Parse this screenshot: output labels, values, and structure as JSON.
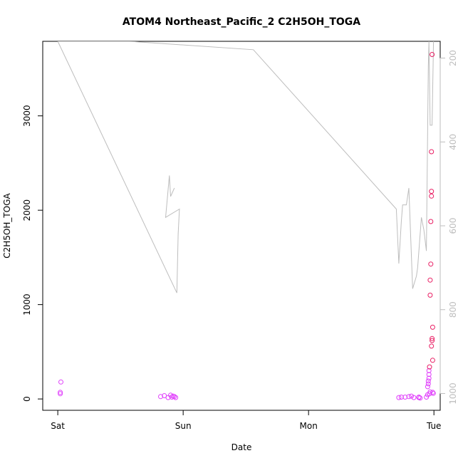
{
  "chart_data": {
    "type": "scatter",
    "title": "ATOM4 Northeast_Pacific_2 C2H5OH_TOGA",
    "xlabel": "Date",
    "ylabel": "C2H5OH_TOGA",
    "x_ticks": [
      {
        "label": "Sat",
        "value": 0
      },
      {
        "label": "Sun",
        "value": 1
      },
      {
        "label": "Mon",
        "value": 2
      },
      {
        "label": "Tue",
        "value": 3
      }
    ],
    "y_ticks": [
      0,
      1000,
      2000,
      3000
    ],
    "y2_ticks": [
      200,
      400,
      600,
      800,
      1000
    ],
    "xlim": [
      -0.12,
      3.05
    ],
    "ylim": [
      -120,
      3790
    ],
    "y2lim": [
      1040,
      160
    ],
    "y2_reversed": true,
    "grid": false,
    "colors": {
      "line": "#bdbdbd",
      "points_low": "#e040fb",
      "points_high": "#e91e63",
      "axis": "#000000",
      "right_axis": "#bdbdbd"
    },
    "series": [
      {
        "type": "line",
        "axis": "right",
        "x": [
          0.0,
          0.57,
          1.56,
          2.7,
          2.72,
          2.74,
          2.75,
          2.78,
          2.8,
          2.83,
          2.86,
          2.87,
          2.9,
          2.92,
          2.94,
          2.955,
          2.96,
          2.97,
          2.985,
          3.0
        ],
        "y": [
          160,
          160,
          180,
          560,
          690,
          590,
          550,
          550,
          510,
          750,
          720,
          700,
          580,
          610,
          660,
          220,
          160,
          360,
          360,
          100
        ]
      },
      {
        "type": "line",
        "axis": "right",
        "x": [
          0.0,
          0.95,
          0.96,
          0.97,
          0.86,
          0.89,
          0.9,
          0.93
        ],
        "y": [
          160,
          760,
          620,
          560,
          580,
          480,
          530,
          510
        ]
      },
      {
        "type": "scatter",
        "axis": "left",
        "x": [
          0.02,
          0.02,
          0.025,
          0.82,
          0.85,
          0.88,
          0.9,
          0.91,
          0.92,
          0.93,
          0.94,
          2.72,
          2.74,
          2.77,
          2.8,
          2.82,
          2.84,
          2.88,
          2.88,
          2.89,
          2.94,
          2.95,
          2.95,
          2.955,
          2.955,
          2.96,
          2.96,
          2.96,
          2.965,
          2.965,
          2.97,
          2.97,
          2.97,
          2.975,
          2.975,
          2.98,
          2.98,
          2.98,
          2.985,
          2.985,
          2.99
        ],
        "y": [
          55,
          70,
          180,
          25,
          35,
          15,
          40,
          20,
          30,
          25,
          15,
          15,
          20,
          20,
          25,
          30,
          15,
          20,
          15,
          10,
          20,
          45,
          130,
          160,
          190,
          220,
          260,
          300,
          340,
          55,
          75,
          1100,
          1260,
          1430,
          1880,
          2150,
          2200,
          2620,
          3650,
          620,
          760
        ]
      },
      {
        "type": "scatter",
        "axis": "left",
        "x": [
          2.98,
          2.985,
          2.99,
          2.99,
          2.995
        ],
        "y": [
          560,
          640,
          410,
          70,
          60
        ]
      }
    ]
  }
}
